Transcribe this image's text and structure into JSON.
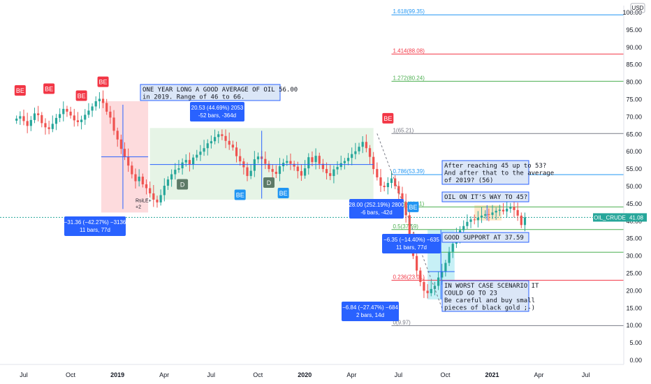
{
  "chart_data": {
    "type": "candlestick",
    "symbol_label": "OIL_CRUDE",
    "last_price": "41.08",
    "currency": "USD",
    "y_axis": {
      "min": 0,
      "max": 100,
      "ticks": [
        "0.00",
        "5.00",
        "10.00",
        "15.00",
        "20.00",
        "25.00",
        "30.00",
        "35.00",
        "40.00",
        "45.00",
        "50.00",
        "55.00",
        "60.00",
        "65.00",
        "70.00",
        "75.00",
        "80.00",
        "85.00",
        "90.00",
        "95.00",
        "100.00"
      ]
    },
    "x_axis": {
      "ticks": [
        {
          "label": "Jul",
          "month": 0
        },
        {
          "label": "Oct",
          "month": 3
        },
        {
          "label": "2019",
          "month": 6
        },
        {
          "label": "Apr",
          "month": 9
        },
        {
          "label": "Jul",
          "month": 12
        },
        {
          "label": "Oct",
          "month": 15
        },
        {
          "label": "2020",
          "month": 18
        },
        {
          "label": "Apr",
          "month": 21
        },
        {
          "label": "Jul",
          "month": 24
        },
        {
          "label": "Oct",
          "month": 27
        },
        {
          "label": "2021",
          "month": 30
        },
        {
          "label": "Apr",
          "month": 33
        },
        {
          "label": "Jul",
          "month": 36
        }
      ]
    },
    "weekly_closes": [
      69.5,
      70.2,
      68.8,
      67.4,
      69.1,
      71.0,
      70.5,
      68.2,
      67.0,
      66.5,
      68.0,
      69.7,
      70.8,
      72.3,
      71.5,
      70.4,
      69.0,
      68.5,
      69.2,
      70.6,
      71.8,
      73.0,
      74.5,
      75.2,
      74.0,
      71.5,
      69.8,
      66.0,
      63.5,
      60.8,
      58.5,
      56.0,
      53.5,
      51.5,
      52.8,
      50.6,
      49.5,
      48.0,
      46.2,
      45.4,
      47.5,
      50.2,
      52.0,
      53.5,
      54.8,
      55.2,
      56.9,
      57.6,
      56.4,
      58.3,
      59.1,
      60.0,
      61.0,
      62.4,
      63.0,
      64.2,
      65.0,
      64.5,
      63.1,
      62.0,
      61.2,
      58.7,
      57.2,
      55.5,
      53.0,
      54.5,
      57.8,
      58.6,
      57.9,
      56.5,
      55.0,
      54.2,
      53.6,
      55.8,
      56.8,
      57.3,
      56.5,
      55.7,
      54.4,
      53.1,
      55.2,
      58.4,
      57.0,
      58.8,
      56.5,
      55.0,
      53.8,
      53.0,
      54.9,
      55.6,
      56.7,
      57.3,
      58.2,
      59.3,
      60.1,
      61.4,
      62.8,
      61.0,
      58.5,
      55.0,
      52.6,
      50.2,
      49.8,
      51.0,
      52.3,
      50.1,
      48.0,
      45.5,
      41.7,
      35.2,
      30.0,
      25.8,
      22.5,
      20.0,
      19.3,
      20.5,
      21.4,
      23.8,
      25.6,
      28.0,
      31.2,
      33.5,
      35.7,
      37.4,
      38.6,
      39.8,
      40.5,
      40.3,
      41.0,
      41.6,
      42.0,
      41.8,
      42.5,
      43.0,
      43.3,
      42.8,
      43.6,
      44.1,
      43.2,
      41.6,
      38.9,
      41.08
    ],
    "fib_levels": [
      {
        "label": "1.618(99.35)",
        "value": 99.35,
        "color": "#2196f3"
      },
      {
        "label": "1.414(88.08)",
        "value": 88.08,
        "color": "#f23645"
      },
      {
        "label": "1.272(80.24)",
        "value": 80.24,
        "color": "#4caf50"
      },
      {
        "label": "1(65.21)",
        "value": 65.21,
        "color": "#787b86"
      },
      {
        "label": "0.786(53.39)",
        "value": 53.39,
        "color": "#2196f3"
      },
      {
        "label": "0.618(44.11)",
        "value": 44.11,
        "color": "#4caf50"
      },
      {
        "label": "0.5(37.59)",
        "value": 37.59,
        "color": "#4caf50"
      },
      {
        "label": "0.382(31.07)",
        "value": 31.07,
        "color": "#4caf50"
      },
      {
        "label": "0.236(23.01)",
        "value": 23.01,
        "color": "#f23645"
      },
      {
        "label": "0(9.97)",
        "value": 9.97,
        "color": "#787b86"
      }
    ],
    "annotations": [
      {
        "text": "ONE YEAR LONG A GOOD AVERAGE OF OIL 56.00\nin 2019. Range of 46 to 66."
      },
      {
        "text": "After reaching 45 up to 53?\nAnd after that to the average\nof 2019? (56)"
      },
      {
        "text": "OIL ON IT'S WAY TO 45?"
      },
      {
        "text": "GOOD SUPPORT AT 37.59"
      },
      {
        "text": "IN WORST CASE SCENARIO IT\nCOULD GO TO 23\nBe careful and buy small\npieces of black gold ;-)"
      }
    ],
    "measurements": [
      {
        "text": "−31.36 (−42.27%) −3136\n11 bars, 77d"
      },
      {
        "text": "20.53 (44.69%) 2053\n-52 bars, -364d"
      },
      {
        "text": "28.00 (252.19%) 2800\n-6 bars, -42d"
      },
      {
        "text": "−6.35 (−14.40%) −635\n11 bars, 77d"
      },
      {
        "text": "−6.84 (−27.47%) −684\n2 bars, 14d"
      }
    ],
    "signals": [
      {
        "text": "BE"
      },
      {
        "text": "BE"
      },
      {
        "text": "BE"
      },
      {
        "text": "BE"
      },
      {
        "text": "BE"
      },
      {
        "text": "BE"
      },
      {
        "text": "BE"
      },
      {
        "text": "BE"
      },
      {
        "text": "BE"
      },
      {
        "text": "D"
      },
      {
        "text": "D"
      }
    ],
    "small_label": "RsiLE+\n+2",
    "grid": false
  }
}
